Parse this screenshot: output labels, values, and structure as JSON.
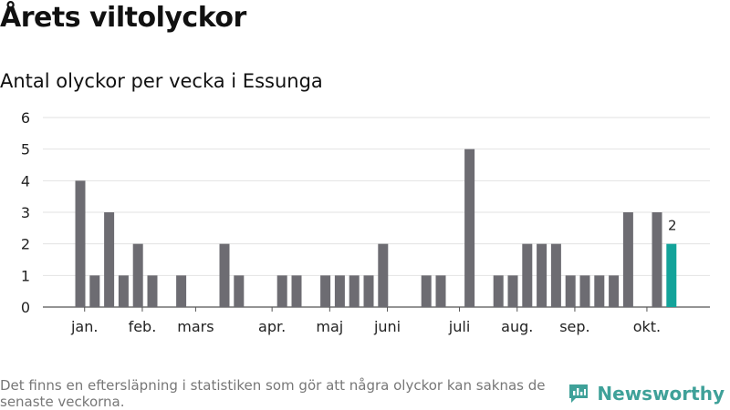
{
  "title": "Årets viltolyckor",
  "subtitle": "Antal olyckor per vecka i Essunga",
  "footnote": "Det finns en eftersläpning i statistiken som gör att några olyckor kan saknas de senaste veckorna.",
  "brand": {
    "name": "Newsworthy",
    "icon": "newsworthy-logo-icon",
    "color": "#3fa199"
  },
  "chart_data": {
    "type": "bar",
    "x": [
      1,
      2,
      3,
      4,
      5,
      6,
      7,
      8,
      9,
      10,
      11,
      12,
      13,
      14,
      15,
      16,
      17,
      18,
      19,
      20,
      21,
      22,
      23,
      24,
      25,
      26,
      27,
      28,
      29,
      30,
      31,
      32,
      33,
      34,
      35,
      36,
      37,
      38,
      39,
      40,
      41,
      42,
      43
    ],
    "values": [
      4,
      1,
      3,
      1,
      2,
      1,
      0,
      1,
      0,
      0,
      2,
      1,
      0,
      0,
      1,
      1,
      0,
      1,
      1,
      1,
      1,
      2,
      0,
      0,
      1,
      1,
      0,
      5,
      0,
      1,
      1,
      2,
      2,
      2,
      1,
      1,
      1,
      1,
      3,
      0,
      3,
      2,
      null
    ],
    "ylim": [
      0,
      6
    ],
    "yticks": [
      0,
      1,
      2,
      3,
      4,
      5,
      6
    ],
    "month_labels": [
      {
        "label": "jan.",
        "x": 1.3
      },
      {
        "label": "feb.",
        "x": 5.3
      },
      {
        "label": "mars",
        "x": 9.0
      },
      {
        "label": "apr.",
        "x": 14.3
      },
      {
        "label": "maj",
        "x": 18.3
      },
      {
        "label": "juni",
        "x": 22.3
      },
      {
        "label": "juli",
        "x": 27.3
      },
      {
        "label": "aug.",
        "x": 31.3
      },
      {
        "label": "sep.",
        "x": 35.3
      },
      {
        "label": "okt.",
        "x": 40.3
      }
    ],
    "highlight": {
      "index": 41,
      "value": 2,
      "label": "2",
      "color": "#13a39a"
    },
    "bar_color": "#6d6c72",
    "grid": true
  }
}
